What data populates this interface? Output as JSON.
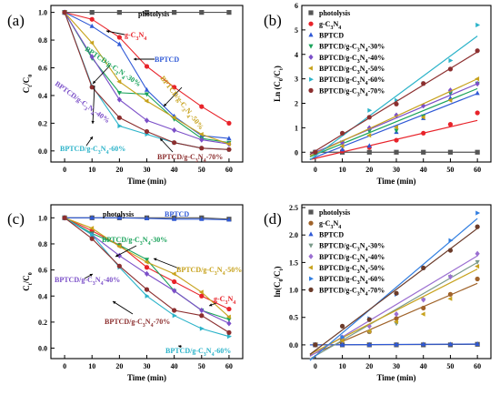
{
  "chart_data": [
    {
      "panel": "(a)",
      "type": "line",
      "title": "",
      "xlabel": "Time (min)",
      "ylabel": "Ct/C0",
      "ylabel_parts": [
        "C",
        "t",
        "/C",
        "0"
      ],
      "xlim": [
        -5,
        65
      ],
      "ylim": [
        -0.08,
        1.05
      ],
      "xticks": [
        0,
        10,
        20,
        30,
        40,
        50,
        60
      ],
      "yticks": [
        0.0,
        0.2,
        0.4,
        0.6,
        0.8,
        1.0
      ],
      "ytick_labels": [
        "0.0",
        "0.2",
        "0.4",
        "0.6",
        "0.8",
        "1.0"
      ],
      "x": [
        0,
        10,
        20,
        30,
        40,
        50,
        60
      ],
      "series": [
        {
          "name": "photolysis",
          "color": "#555555",
          "marker": "square",
          "values": [
            1.0,
            1.0,
            1.0,
            1.0,
            1.0,
            1.0,
            1.0
          ]
        },
        {
          "name": "g-C3N4",
          "color": "#e8232a",
          "marker": "circle",
          "values": [
            1.0,
            0.95,
            0.82,
            0.61,
            0.46,
            0.32,
            0.2
          ]
        },
        {
          "name": "BPTCD",
          "color": "#2f59d6",
          "marker": "triangle",
          "values": [
            1.0,
            0.9,
            0.77,
            0.44,
            0.25,
            0.11,
            0.09
          ]
        },
        {
          "name": "BPTCD/g-C3N4-30%",
          "color": "#1aa35b",
          "marker": "triangle-down",
          "values": [
            1.0,
            0.67,
            0.42,
            0.41,
            0.23,
            0.09,
            0.06
          ]
        },
        {
          "name": "BPTCD/g-C3N4-40%",
          "color": "#7b4fc8",
          "marker": "diamond",
          "values": [
            1.0,
            0.68,
            0.37,
            0.22,
            0.15,
            0.08,
            0.05
          ]
        },
        {
          "name": "BPTCD/g-C3N4-50%",
          "color": "#c7a21c",
          "marker": "triangle-left",
          "values": [
            1.0,
            0.78,
            0.5,
            0.36,
            0.24,
            0.12,
            0.05
          ]
        },
        {
          "name": "BPTCD/g-C3N4-60%",
          "color": "#2bb3c9",
          "marker": "triangle-right",
          "values": [
            1.0,
            0.47,
            0.18,
            0.12,
            0.06,
            0.02,
            0.01
          ]
        },
        {
          "name": "BPTCD/g-C3N4-70%",
          "color": "#8c2f2f",
          "marker": "circle",
          "values": [
            1.0,
            0.46,
            0.24,
            0.14,
            0.06,
            0.02,
            0.01
          ]
        }
      ],
      "annotations": [
        {
          "text": "photolysis",
          "parts": [
            "photolysis"
          ],
          "color": "#000000"
        },
        {
          "text": "g-C3N4",
          "parts": [
            "g-C",
            "3",
            "N",
            "4"
          ],
          "color": "#e8232a"
        },
        {
          "text": "BPTCD",
          "parts": [
            "BPTCD"
          ],
          "color": "#2f59d6"
        },
        {
          "text": "BPTCD/g-C3N4-30%",
          "parts": [
            "BPTCD/g-C",
            "3",
            "N",
            "4",
            "-30%"
          ],
          "color": "#1aa35b"
        },
        {
          "text": "BPTCD/g-C3N4-50%",
          "parts": [
            "BPTCD/g-C",
            "3",
            "N",
            "4",
            "-50%"
          ],
          "color": "#c7a21c"
        },
        {
          "text": "BPTCD/g-C3N4-40%",
          "parts": [
            "BPTCD/g-C",
            "3",
            "N",
            "4",
            "-40%"
          ],
          "color": "#7b4fc8"
        },
        {
          "text": "BPTCD/g-C3N4-60%",
          "parts": [
            "BPTCD/g-C",
            "3",
            "N",
            "4",
            "-60%"
          ],
          "color": "#2bb3c9"
        },
        {
          "text": "BPTCD/g-C3N4-70%",
          "parts": [
            "BPTCD/g-C",
            "3",
            "N",
            "4",
            "-70%"
          ],
          "color": "#8c2f2f"
        }
      ]
    },
    {
      "panel": "(b)",
      "type": "scatter",
      "title": "",
      "xlabel": "Time (min)",
      "ylabel": "Ln (C0/Ct)",
      "ylabel_parts": [
        "Ln (C",
        "0",
        "/C",
        "t",
        ")"
      ],
      "xlim": [
        -5,
        65
      ],
      "ylim": [
        -0.4,
        6.0
      ],
      "xticks": [
        0,
        10,
        20,
        30,
        40,
        50,
        60
      ],
      "yticks": [
        0,
        1,
        2,
        3,
        4,
        5,
        6
      ],
      "ytick_labels": [
        "0",
        "1",
        "2",
        "3",
        "4",
        "5",
        "6"
      ],
      "x": [
        0,
        10,
        20,
        30,
        40,
        50,
        60
      ],
      "legend_position": "top-left",
      "series": [
        {
          "name": "photolysis",
          "legend_parts": [
            "photolysis"
          ],
          "color": "#555555",
          "marker": "square",
          "values": [
            0,
            0,
            0,
            0,
            0,
            0,
            0
          ],
          "fit": [
            0,
            0
          ]
        },
        {
          "name": "g-C3N4",
          "legend_parts": [
            "g-C",
            "3",
            "N",
            "4"
          ],
          "color": "#e8232a",
          "marker": "circle",
          "values": [
            0,
            0.05,
            0.2,
            0.49,
            0.78,
            1.14,
            1.61
          ],
          "fit": [
            -0.25,
            1.3
          ]
        },
        {
          "name": "BPTCD",
          "legend_parts": [
            "BPTCD"
          ],
          "color": "#2f59d6",
          "marker": "triangle",
          "values": [
            0,
            0.11,
            0.26,
            0.82,
            1.39,
            2.21,
            2.41
          ],
          "fit": [
            -0.2,
            2.4
          ]
        },
        {
          "name": "BPTCD/g-C3N4-30%",
          "legend_parts": [
            "BPTCD/g-C",
            "3",
            "N",
            "4",
            "-30%"
          ],
          "color": "#1aa35b",
          "marker": "triangle-down",
          "values": [
            0,
            0.4,
            0.87,
            0.89,
            1.47,
            2.41,
            2.81
          ],
          "fit": [
            -0.1,
            2.6
          ]
        },
        {
          "name": "BPTCD/g-C3N4-40%",
          "legend_parts": [
            "BPTCD/g-C",
            "3",
            "N",
            "4",
            "-40%"
          ],
          "color": "#7b4fc8",
          "marker": "diamond",
          "values": [
            0,
            0.39,
            0.99,
            1.51,
            1.9,
            2.53,
            2.8
          ],
          "fit": [
            0.0,
            2.8
          ]
        },
        {
          "name": "BPTCD/g-C3N4-50%",
          "legend_parts": [
            "BPTCD/g-C",
            "3",
            "N",
            "4",
            "-50%"
          ],
          "color": "#c7a21c",
          "marker": "triangle-left",
          "values": [
            0,
            0.25,
            0.69,
            1.02,
            1.43,
            2.12,
            3.0
          ],
          "fit": [
            -0.05,
            3.0
          ]
        },
        {
          "name": "BPTCD/g-C3N4-60%",
          "legend_parts": [
            "BPTCD/g-C",
            "3",
            "N",
            "4",
            "-60%"
          ],
          "color": "#2bb3c9",
          "marker": "triangle-right",
          "values": [
            0,
            0.76,
            1.71,
            2.12,
            2.81,
            3.75,
            5.2
          ],
          "fit": [
            -0.15,
            4.75
          ]
        },
        {
          "name": "BPTCD/g-C3N4-70%",
          "legend_parts": [
            "BPTCD/g-C",
            "3",
            "N",
            "4",
            "-70%"
          ],
          "color": "#8c2f2f",
          "marker": "circle",
          "values": [
            0,
            0.78,
            1.43,
            1.97,
            2.81,
            3.4,
            4.15
          ],
          "fit": [
            0.05,
            4.1
          ]
        }
      ]
    },
    {
      "panel": "(c)",
      "type": "line",
      "title": "",
      "xlabel": "Time (min)",
      "ylabel": "Ct/C0",
      "ylabel_parts": [
        "C",
        "t",
        "/C",
        "0"
      ],
      "xlim": [
        -5,
        65
      ],
      "ylim": [
        -0.08,
        1.1
      ],
      "xticks": [
        0,
        10,
        20,
        30,
        40,
        50,
        60
      ],
      "yticks": [
        0.0,
        0.2,
        0.4,
        0.6,
        0.8,
        1.0
      ],
      "ytick_labels": [
        "0.0",
        "0.2",
        "0.4",
        "0.6",
        "0.8",
        "1.0"
      ],
      "x": [
        0,
        10,
        20,
        30,
        40,
        50,
        60
      ],
      "series": [
        {
          "name": "photolysis",
          "color": "#555555",
          "marker": "square",
          "values": [
            1.0,
            1.0,
            1.0,
            1.0,
            1.0,
            1.0,
            0.99
          ]
        },
        {
          "name": "BPTCD",
          "color": "#2f59d6",
          "marker": "triangle",
          "values": [
            1.0,
            1.0,
            1.0,
            0.995,
            0.99,
            0.99,
            0.985
          ]
        },
        {
          "name": "g-C3N4",
          "color": "#e8232a",
          "marker": "circle",
          "values": [
            1.0,
            0.9,
            0.79,
            0.62,
            0.51,
            0.4,
            0.3
          ]
        },
        {
          "name": "BPTCD/g-C3N4-30%",
          "color": "#1aa35b",
          "marker": "triangle-down",
          "values": [
            1.0,
            0.88,
            0.79,
            0.68,
            0.44,
            0.29,
            0.22
          ]
        },
        {
          "name": "BPTCD/g-C3N4-40%",
          "color": "#7b4fc8",
          "marker": "diamond",
          "values": [
            1.0,
            0.87,
            0.71,
            0.57,
            0.44,
            0.29,
            0.19
          ]
        },
        {
          "name": "BPTCD/g-C3N4-50%",
          "color": "#c7a21c",
          "marker": "triangle-left",
          "values": [
            1.0,
            0.92,
            0.78,
            0.66,
            0.57,
            0.43,
            0.24
          ]
        },
        {
          "name": "BPTCD/g-C3N4-60%",
          "color": "#2bb3c9",
          "marker": "triangle-right",
          "values": [
            1.0,
            0.87,
            0.62,
            0.4,
            0.25,
            0.15,
            0.09
          ]
        },
        {
          "name": "BPTCD/g-C3N4-70%",
          "color": "#8c2f2f",
          "marker": "circle",
          "values": [
            1.0,
            0.84,
            0.63,
            0.45,
            0.29,
            0.25,
            0.12
          ]
        }
      ],
      "annotations": [
        {
          "text": "photolysis",
          "parts": [
            "photolysis"
          ],
          "color": "#000000"
        },
        {
          "text": "BPTCD",
          "parts": [
            "BPTCD"
          ],
          "color": "#2f59d6"
        },
        {
          "text": "BPTCD/g-C3N4-30%",
          "parts": [
            "BPTCD/g-C",
            "3",
            "N",
            "4",
            "-30%"
          ],
          "color": "#1aa35b"
        },
        {
          "text": "BPTCD/g-C3N4-50%",
          "parts": [
            "BPTCD/g-C",
            "3",
            "N",
            "4",
            "-50%"
          ],
          "color": "#c7a21c"
        },
        {
          "text": "BPTCD/g-C3N4-40%",
          "parts": [
            "BPTCD/g-C",
            "3",
            "N",
            "4",
            "-40%"
          ],
          "color": "#7b4fc8"
        },
        {
          "text": "g-C3N4",
          "parts": [
            "g-C",
            "3",
            "N",
            "4"
          ],
          "color": "#e8232a"
        },
        {
          "text": "BPTCD/g-C3N4-70%",
          "parts": [
            "BPTCD/g-C",
            "3",
            "N",
            "4",
            "-70%"
          ],
          "color": "#8c2f2f"
        },
        {
          "text": "BPTCD/g-C3N4-60%",
          "parts": [
            "BPTCD/g-C",
            "3",
            "N",
            "4",
            "-60%"
          ],
          "color": "#2bb3c9"
        }
      ]
    },
    {
      "panel": "(d)",
      "type": "scatter",
      "title": "",
      "xlabel": "Time (min)",
      "ylabel": "ln(C0/Ct)",
      "ylabel_parts": [
        "ln(C",
        "0",
        "/C",
        "t",
        ")"
      ],
      "xlim": [
        -5,
        65
      ],
      "ylim": [
        -0.25,
        2.55
      ],
      "xticks": [
        0,
        10,
        20,
        30,
        40,
        50,
        60
      ],
      "yticks": [
        0.0,
        0.5,
        1.0,
        1.5,
        2.0,
        2.5
      ],
      "ytick_labels": [
        "0.0",
        "0.5",
        "1.0",
        "1.5",
        "2.0",
        "2.5"
      ],
      "x": [
        0,
        10,
        20,
        30,
        40,
        50,
        60
      ],
      "legend_position": "top-left",
      "series": [
        {
          "name": "photolysis",
          "legend_parts": [
            "photolysis"
          ],
          "color": "#555555",
          "marker": "square",
          "values": [
            0,
            0,
            0,
            0,
            0,
            0,
            0.01
          ],
          "fit": [
            0,
            0.01
          ]
        },
        {
          "name": "g-C3N4",
          "legend_parts": [
            "g-C",
            "3",
            "N",
            "4"
          ],
          "color": "#a0632a",
          "marker": "circle",
          "values": [
            0,
            0.1,
            0.24,
            0.48,
            0.67,
            0.92,
            1.2
          ],
          "fit": [
            -0.15,
            1.12
          ]
        },
        {
          "name": "BPTCD",
          "legend_parts": [
            "BPTCD"
          ],
          "color": "#2f59d6",
          "marker": "triangle",
          "values": [
            0,
            0,
            0,
            0.005,
            0.01,
            0.01,
            0.015
          ],
          "fit": [
            0,
            0.015
          ]
        },
        {
          "name": "BPTCD/g-C3N4-30%",
          "legend_parts": [
            "BPTCD/g-C",
            "3",
            "N",
            "4",
            "-30%"
          ],
          "color": "#7a9a8a",
          "marker": "triangle-down",
          "values": [
            0,
            0.13,
            0.24,
            0.39,
            0.82,
            1.24,
            1.51
          ],
          "fit": [
            -0.2,
            1.5
          ]
        },
        {
          "name": "BPTCD/g-C3N4-40%",
          "legend_parts": [
            "BPTCD/g-C",
            "3",
            "N",
            "4",
            "-40%"
          ],
          "color": "#9b6fd1",
          "marker": "diamond",
          "values": [
            0,
            0.14,
            0.34,
            0.56,
            0.82,
            1.24,
            1.66
          ],
          "fit": [
            -0.15,
            1.62
          ]
        },
        {
          "name": "BPTCD/g-C3N4-50%",
          "legend_parts": [
            "BPTCD/g-C",
            "3",
            "N",
            "4",
            "-50%"
          ],
          "color": "#c7a21c",
          "marker": "triangle-left",
          "values": [
            0,
            0.08,
            0.25,
            0.42,
            0.56,
            0.84,
            1.43
          ],
          "fit": [
            -0.12,
            1.38
          ]
        },
        {
          "name": "BPTCD/g-C3N4-60%",
          "legend_parts": [
            "BPTCD/g-C",
            "3",
            "N",
            "4",
            "-60%"
          ],
          "color": "#2f7de0",
          "marker": "triangle-right",
          "values": [
            0,
            0.14,
            0.48,
            0.92,
            1.39,
            1.9,
            2.4
          ],
          "fit": [
            -0.2,
            2.3
          ]
        },
        {
          "name": "BPTCD/g-C3N4-70%",
          "legend_parts": [
            "BPTCD/g-C",
            "3",
            "N",
            "4",
            "-70%"
          ],
          "color": "#6b3b2a",
          "marker": "circle",
          "values": [
            0,
            0.34,
            0.46,
            0.94,
            1.4,
            1.72,
            2.15
          ],
          "fit": [
            -0.1,
            2.12
          ]
        }
      ]
    }
  ]
}
